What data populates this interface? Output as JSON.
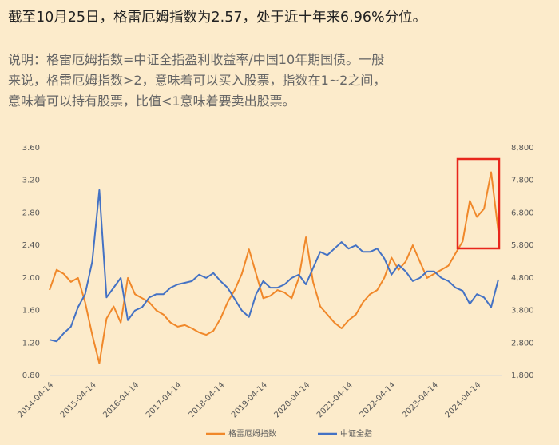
{
  "header": {
    "title": "截至10月25日，格雷厄姆指数为2.57，处于近十年来6.96%分位。",
    "description": [
      "说明：格雷厄姆指数=中证全指盈利收益率/中国10年期国债。一般",
      "来说，格雷厄姆指数>2，意味着可以买入股票，指数在1~2之间，",
      "意味着可以持有股票，比值<1意味着要卖出股票。"
    ]
  },
  "chart_data": {
    "type": "line",
    "categories": [
      "2014-04-14",
      null,
      null,
      null,
      null,
      null,
      "2015-04-14",
      null,
      null,
      null,
      null,
      null,
      "2016-04-14",
      null,
      null,
      null,
      null,
      null,
      "2017-04-14",
      null,
      null,
      null,
      null,
      null,
      "2018-04-14",
      null,
      null,
      null,
      null,
      null,
      "2019-04-14",
      null,
      null,
      null,
      null,
      null,
      "2020-04-14",
      null,
      null,
      null,
      null,
      null,
      "2021-04-14",
      null,
      null,
      null,
      null,
      null,
      "2022-04-14",
      null,
      null,
      null,
      null,
      null,
      "2023-04-14",
      null,
      null,
      null,
      null,
      null,
      "2024-04-14",
      null,
      null,
      null
    ],
    "series": [
      {
        "name": "格雷厄姆指数",
        "color": "#f0882a",
        "axis": "y",
        "values": [
          1.85,
          2.1,
          2.05,
          1.95,
          2.0,
          1.7,
          1.3,
          0.95,
          1.5,
          1.65,
          1.45,
          2.0,
          1.8,
          1.75,
          1.7,
          1.6,
          1.55,
          1.45,
          1.4,
          1.42,
          1.38,
          1.33,
          1.3,
          1.35,
          1.5,
          1.7,
          1.85,
          2.05,
          2.35,
          2.05,
          1.75,
          1.78,
          1.85,
          1.82,
          1.75,
          2.0,
          2.5,
          1.95,
          1.65,
          1.55,
          1.45,
          1.38,
          1.48,
          1.55,
          1.7,
          1.8,
          1.85,
          2.0,
          2.25,
          2.1,
          2.2,
          2.4,
          2.2,
          2.0,
          2.05,
          2.1,
          2.15,
          2.3,
          2.45,
          2.95,
          2.75,
          2.85,
          3.3,
          2.57
        ]
      },
      {
        "name": "中证全指",
        "color": "#4472c4",
        "axis": "y2",
        "values": [
          2900,
          2850,
          3100,
          3300,
          3900,
          4300,
          5300,
          7500,
          4200,
          4500,
          4800,
          3500,
          3800,
          3900,
          4200,
          4300,
          4300,
          4500,
          4600,
          4650,
          4700,
          4900,
          4800,
          4950,
          4700,
          4500,
          4150,
          3800,
          3600,
          4300,
          4700,
          4500,
          4500,
          4600,
          4800,
          4900,
          4600,
          5100,
          5600,
          5500,
          5700,
          5900,
          5700,
          5800,
          5600,
          5600,
          5700,
          5400,
          4900,
          5200,
          5000,
          4700,
          4800,
          5000,
          5000,
          4800,
          4700,
          4500,
          4400,
          4000,
          4300,
          4200,
          3900,
          4750
        ]
      }
    ],
    "ylim": [
      0.8,
      3.6
    ],
    "yticks": [
      {
        "value": 0.8,
        "label": "0.80"
      },
      {
        "value": 1.2,
        "label": "1.20"
      },
      {
        "value": 1.6,
        "label": "1.60"
      },
      {
        "value": 2.0,
        "label": "2.00"
      },
      {
        "value": 2.4,
        "label": "2.40"
      },
      {
        "value": 2.8,
        "label": "2.80"
      },
      {
        "value": 3.2,
        "label": "3.20"
      },
      {
        "value": 3.6,
        "label": "3.60"
      }
    ],
    "y2lim": [
      1800,
      8800
    ],
    "y2ticks": [
      {
        "value": 1800,
        "label": "1,800"
      },
      {
        "value": 2800,
        "label": "2,800"
      },
      {
        "value": 3800,
        "label": "3,800"
      },
      {
        "value": 4800,
        "label": "4,800"
      },
      {
        "value": 5800,
        "label": "5,800"
      },
      {
        "value": 6800,
        "label": "6,800"
      },
      {
        "value": 7800,
        "label": "7,800"
      },
      {
        "value": 8800,
        "label": "8,800"
      }
    ],
    "grid": false,
    "legend": "bottom"
  }
}
